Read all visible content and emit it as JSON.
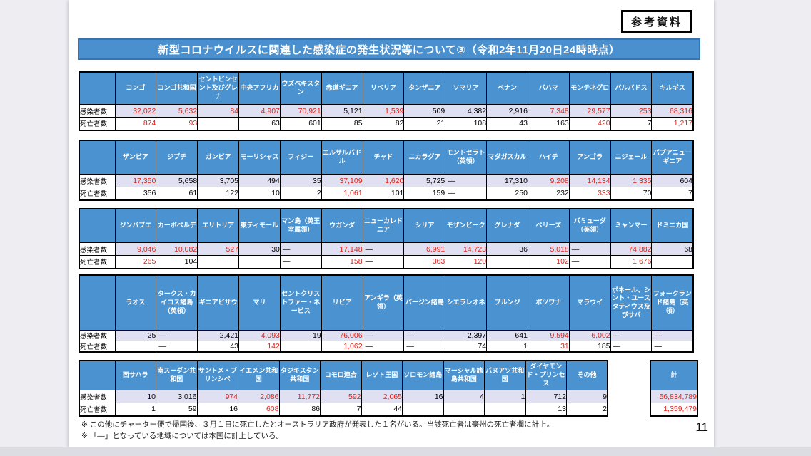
{
  "page": {
    "corner_label": "参考資料",
    "title": "新型コロナウイルスに関連した感染症の発生状況等について③（令和2年11月20日24時時点）",
    "page_number": "11",
    "row_labels": {
      "infected": "感染者数",
      "deaths": "死亡者数"
    },
    "notes": [
      "※ この他にチャーター便で帰国後、３月１日に死亡したとオーストラリア政府が発表した１名がいる。当該死亡者は豪州の死亡者欄に計上。",
      "※ 「―」となっている地域については本国に計上している。"
    ]
  },
  "colors": {
    "header_blue": "#4a93d0",
    "title_blue": "#4a90ce",
    "infected_row_bg": "#dfe1f2",
    "red_number": "#e0231a",
    "border_black": "#000000"
  },
  "tables": [
    {
      "columns": [
        {
          "header": "コンゴ",
          "infected": "32,022",
          "infected_red": true,
          "deaths": "874",
          "deaths_red": true
        },
        {
          "header": "コンゴ共和国",
          "infected": "5,632",
          "infected_red": true,
          "deaths": "93",
          "deaths_red": true
        },
        {
          "header": "セントビンセント及びグレナ",
          "infected": "84",
          "infected_red": true,
          "deaths": "",
          "deaths_red": false
        },
        {
          "header": "中央アフリカ",
          "infected": "4,907",
          "infected_red": true,
          "deaths": "63",
          "deaths_red": false
        },
        {
          "header": "ウズベキスタン",
          "infected": "70,921",
          "infected_red": true,
          "deaths": "601",
          "deaths_red": false
        },
        {
          "header": "赤道ギニア",
          "infected": "5,121",
          "infected_red": false,
          "deaths": "85",
          "deaths_red": false
        },
        {
          "header": "リベリア",
          "infected": "1,539",
          "infected_red": true,
          "deaths": "82",
          "deaths_red": false
        },
        {
          "header": "タンザニア",
          "infected": "509",
          "infected_red": false,
          "deaths": "21",
          "deaths_red": false
        },
        {
          "header": "ソマリア",
          "infected": "4,382",
          "infected_red": false,
          "deaths": "108",
          "deaths_red": false
        },
        {
          "header": "ベナン",
          "infected": "2,916",
          "infected_red": false,
          "deaths": "43",
          "deaths_red": false
        },
        {
          "header": "バハマ",
          "infected": "7,348",
          "infected_red": true,
          "deaths": "163",
          "deaths_red": false
        },
        {
          "header": "モンテネグロ",
          "infected": "29,577",
          "infected_red": true,
          "deaths": "420",
          "deaths_red": true
        },
        {
          "header": "バルバドス",
          "infected": "253",
          "infected_red": true,
          "deaths": "7",
          "deaths_red": false
        },
        {
          "header": "キルギス",
          "infected": "68,316",
          "infected_red": true,
          "deaths": "1,217",
          "deaths_red": true
        }
      ]
    },
    {
      "columns": [
        {
          "header": "ザンビア",
          "infected": "17,350",
          "infected_red": true,
          "deaths": "356",
          "deaths_red": false
        },
        {
          "header": "ジブチ",
          "infected": "5,658",
          "infected_red": false,
          "deaths": "61",
          "deaths_red": false
        },
        {
          "header": "ガンビア",
          "infected": "3,705",
          "infected_red": false,
          "deaths": "122",
          "deaths_red": false
        },
        {
          "header": "モーリシャス",
          "infected": "494",
          "infected_red": false,
          "deaths": "10",
          "deaths_red": false
        },
        {
          "header": "フィジー",
          "infected": "35",
          "infected_red": false,
          "deaths": "2",
          "deaths_red": false
        },
        {
          "header": "エルサルバドル",
          "infected": "37,109",
          "infected_red": true,
          "deaths": "1,061",
          "deaths_red": true
        },
        {
          "header": "チャド",
          "infected": "1,620",
          "infected_red": true,
          "deaths": "101",
          "deaths_red": false
        },
        {
          "header": "ニカラグア",
          "infected": "5,725",
          "infected_red": false,
          "deaths": "159",
          "deaths_red": false
        },
        {
          "header": "モントセラト（英領）",
          "infected": "―",
          "infected_red": false,
          "deaths": "―",
          "deaths_red": false
        },
        {
          "header": "マダガスカル",
          "infected": "17,310",
          "infected_red": false,
          "deaths": "250",
          "deaths_red": false
        },
        {
          "header": "ハイチ",
          "infected": "9,208",
          "infected_red": true,
          "deaths": "232",
          "deaths_red": false
        },
        {
          "header": "アンゴラ",
          "infected": "14,134",
          "infected_red": true,
          "deaths": "333",
          "deaths_red": true
        },
        {
          "header": "ニジェール",
          "infected": "1,335",
          "infected_red": true,
          "deaths": "70",
          "deaths_red": false
        },
        {
          "header": "パプアニューギニア",
          "infected": "604",
          "infected_red": false,
          "deaths": "7",
          "deaths_red": false
        }
      ]
    },
    {
      "columns": [
        {
          "header": "ジンバブエ",
          "infected": "9,046",
          "infected_red": true,
          "deaths": "265",
          "deaths_red": true
        },
        {
          "header": "カーボベルデ",
          "infected": "10,082",
          "infected_red": true,
          "deaths": "104",
          "deaths_red": false
        },
        {
          "header": "エリトリア",
          "infected": "527",
          "infected_red": true,
          "deaths": "",
          "deaths_red": false
        },
        {
          "header": "東ティモール",
          "infected": "30",
          "infected_red": false,
          "deaths": "",
          "deaths_red": false
        },
        {
          "header": "マン島（英王室属領）",
          "infected": "―",
          "infected_red": false,
          "deaths": "―",
          "deaths_red": false
        },
        {
          "header": "ウガンダ",
          "infected": "17,148",
          "infected_red": true,
          "deaths": "158",
          "deaths_red": true
        },
        {
          "header": "ニューカレドニア",
          "infected": "―",
          "infected_red": false,
          "deaths": "―",
          "deaths_red": false
        },
        {
          "header": "シリア",
          "infected": "6,991",
          "infected_red": true,
          "deaths": "363",
          "deaths_red": true
        },
        {
          "header": "モザンビーク",
          "infected": "14,723",
          "infected_red": true,
          "deaths": "120",
          "deaths_red": true
        },
        {
          "header": "グレナダ",
          "infected": "36",
          "infected_red": false,
          "deaths": "",
          "deaths_red": false
        },
        {
          "header": "ベリーズ",
          "infected": "5,018",
          "infected_red": true,
          "deaths": "102",
          "deaths_red": true
        },
        {
          "header": "バミューダ（英領）",
          "infected": "―",
          "infected_red": false,
          "deaths": "―",
          "deaths_red": false
        },
        {
          "header": "ミャンマー",
          "infected": "74,882",
          "infected_red": true,
          "deaths": "1,676",
          "deaths_red": true
        },
        {
          "header": "ドミニカ国",
          "infected": "68",
          "infected_red": false,
          "deaths": "",
          "deaths_red": false
        }
      ]
    },
    {
      "columns": [
        {
          "header": "ラオス",
          "infected": "25",
          "infected_red": false,
          "deaths": "",
          "deaths_red": false
        },
        {
          "header": "タークス・カイコス諸島（英領）",
          "infected": "―",
          "infected_red": false,
          "deaths": "―",
          "deaths_red": false
        },
        {
          "header": "ギニアビサウ",
          "infected": "2,421",
          "infected_red": false,
          "deaths": "43",
          "deaths_red": false
        },
        {
          "header": "マリ",
          "infected": "4,093",
          "infected_red": true,
          "deaths": "142",
          "deaths_red": true
        },
        {
          "header": "セントクリストファー・ネービス",
          "infected": "19",
          "infected_red": false,
          "deaths": "",
          "deaths_red": false
        },
        {
          "header": "リビア",
          "infected": "76,006",
          "infected_red": true,
          "deaths": "1,062",
          "deaths_red": true
        },
        {
          "header": "アンギラ（英領）",
          "infected": "―",
          "infected_red": false,
          "deaths": "―",
          "deaths_red": false
        },
        {
          "header": "バージン諸島",
          "infected": "―",
          "infected_red": false,
          "deaths": "―",
          "deaths_red": false
        },
        {
          "header": "シエラレオネ",
          "infected": "2,397",
          "infected_red": false,
          "deaths": "74",
          "deaths_red": false
        },
        {
          "header": "ブルンジ",
          "infected": "641",
          "infected_red": false,
          "deaths": "1",
          "deaths_red": false
        },
        {
          "header": "ボツワナ",
          "infected": "9,594",
          "infected_red": true,
          "deaths": "31",
          "deaths_red": true
        },
        {
          "header": "マラウイ",
          "infected": "6,002",
          "infected_red": true,
          "deaths": "185",
          "deaths_red": false
        },
        {
          "header": "ボネール、シント・ユースタティウス及びサバ",
          "infected": "―",
          "infected_red": false,
          "deaths": "―",
          "deaths_red": false
        },
        {
          "header": "フォークランド諸島（英領）",
          "infected": "―",
          "infected_red": false,
          "deaths": "―",
          "deaths_red": false
        }
      ]
    },
    {
      "columns": [
        {
          "header": "西サハラ",
          "infected": "10",
          "infected_red": false,
          "deaths": "1",
          "deaths_red": false
        },
        {
          "header": "南スーダン共和国",
          "infected": "3,016",
          "infected_red": false,
          "deaths": "59",
          "deaths_red": false
        },
        {
          "header": "サントメ・プリンシペ",
          "infected": "974",
          "infected_red": true,
          "deaths": "16",
          "deaths_red": false
        },
        {
          "header": "イエメン共和国",
          "infected": "2,086",
          "infected_red": true,
          "deaths": "608",
          "deaths_red": true
        },
        {
          "header": "タジキスタン共和国",
          "infected": "11,772",
          "infected_red": true,
          "deaths": "86",
          "deaths_red": false
        },
        {
          "header": "コモロ連合",
          "infected": "592",
          "infected_red": true,
          "deaths": "7",
          "deaths_red": false
        },
        {
          "header": "レソト王国",
          "infected": "2,065",
          "infected_red": true,
          "deaths": "44",
          "deaths_red": false
        },
        {
          "header": "ソロモン諸島",
          "infected": "16",
          "infected_red": false,
          "deaths": "",
          "deaths_red": false
        },
        {
          "header": "マーシャル諸島共和国",
          "infected": "4",
          "infected_red": false,
          "deaths": "",
          "deaths_red": false
        },
        {
          "header": "バヌアツ共和国",
          "infected": "1",
          "infected_red": false,
          "deaths": "",
          "deaths_red": false
        },
        {
          "header": "ダイヤモンド・プリンセス",
          "infected": "712",
          "infected_red": false,
          "deaths": "13",
          "deaths_red": false
        },
        {
          "header": "その他",
          "infected": "9",
          "infected_red": false,
          "deaths": "2",
          "deaths_red": false
        }
      ]
    }
  ],
  "total": {
    "header": "計",
    "infected": "56,834,789",
    "infected_red": true,
    "deaths": "1,359,479",
    "deaths_red": true
  }
}
